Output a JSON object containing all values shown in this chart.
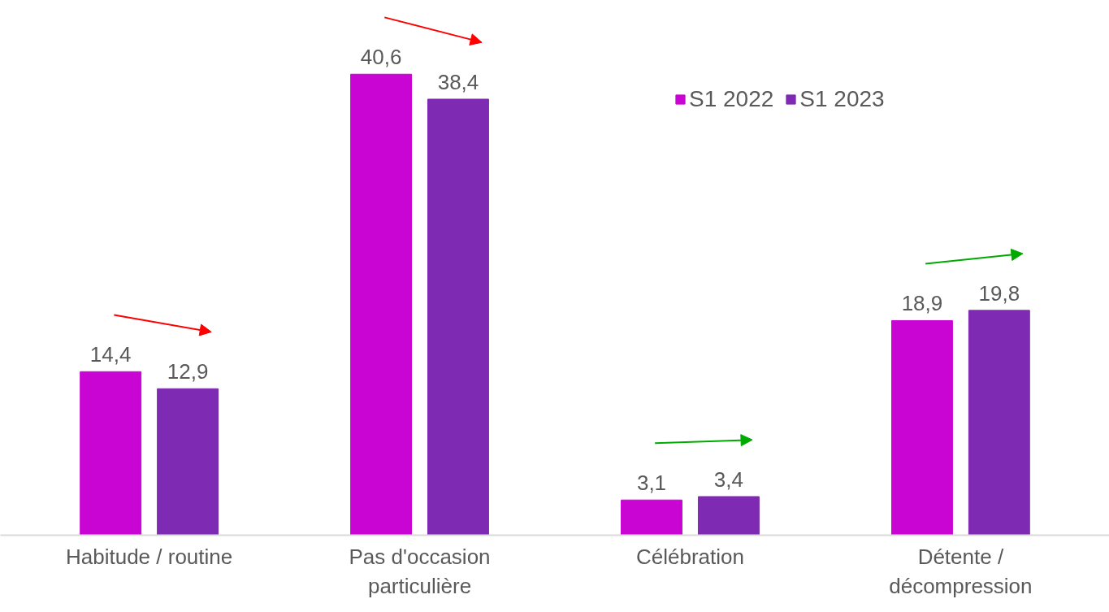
{
  "chart_data": {
    "type": "bar",
    "categories": [
      "Habitude / routine",
      "Pas d'occasion\nparticulière",
      "Célébration",
      "Détente /\ndécompression"
    ],
    "series": [
      {
        "name": "S1 2022",
        "color": "#c805d2",
        "values": [
          14.4,
          40.6,
          3.1,
          18.9
        ],
        "value_labels": [
          "14,4",
          "40,6",
          "3,1",
          "18,9"
        ]
      },
      {
        "name": "S1 2023",
        "color": "#7f2ab3",
        "values": [
          12.9,
          38.4,
          3.4,
          19.8
        ],
        "value_labels": [
          "12,9",
          "38,4",
          "3,4",
          "19,8"
        ]
      }
    ],
    "legend": "top right"
  }
}
